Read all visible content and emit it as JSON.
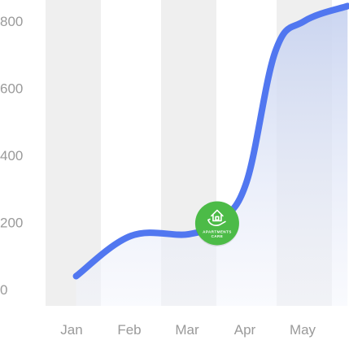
{
  "chart_data": {
    "type": "area",
    "categories": [
      "Jan",
      "Feb",
      "Mar",
      "Apr",
      "May"
    ],
    "yticks": [
      0,
      200,
      400,
      600,
      800
    ],
    "ylim": [
      0,
      850
    ],
    "grid": "alternating-column-bands",
    "points": [
      {
        "x": 0.05,
        "y": 40
      },
      {
        "x": 1.0,
        "y": 160
      },
      {
        "x": 2.0,
        "y": 165
      },
      {
        "x": 2.52,
        "y": 205
      },
      {
        "x": 3.0,
        "y": 320
      },
      {
        "x": 3.5,
        "y": 710
      },
      {
        "x": 4.0,
        "y": 800
      },
      {
        "x": 4.75,
        "y": 845
      }
    ],
    "colors": {
      "line": "#5177f0",
      "fill_top": "#c8d3f0",
      "fill_bottom": "#f3f5fc",
      "band": "#efefef",
      "tick": "#9a9a9a"
    },
    "marker": {
      "x": 2.52,
      "y": 205,
      "color": "#4cbb47",
      "icon": "house-in-hand-icon",
      "text_line1": "APARTMENTS",
      "text_line2": "CARE"
    }
  }
}
